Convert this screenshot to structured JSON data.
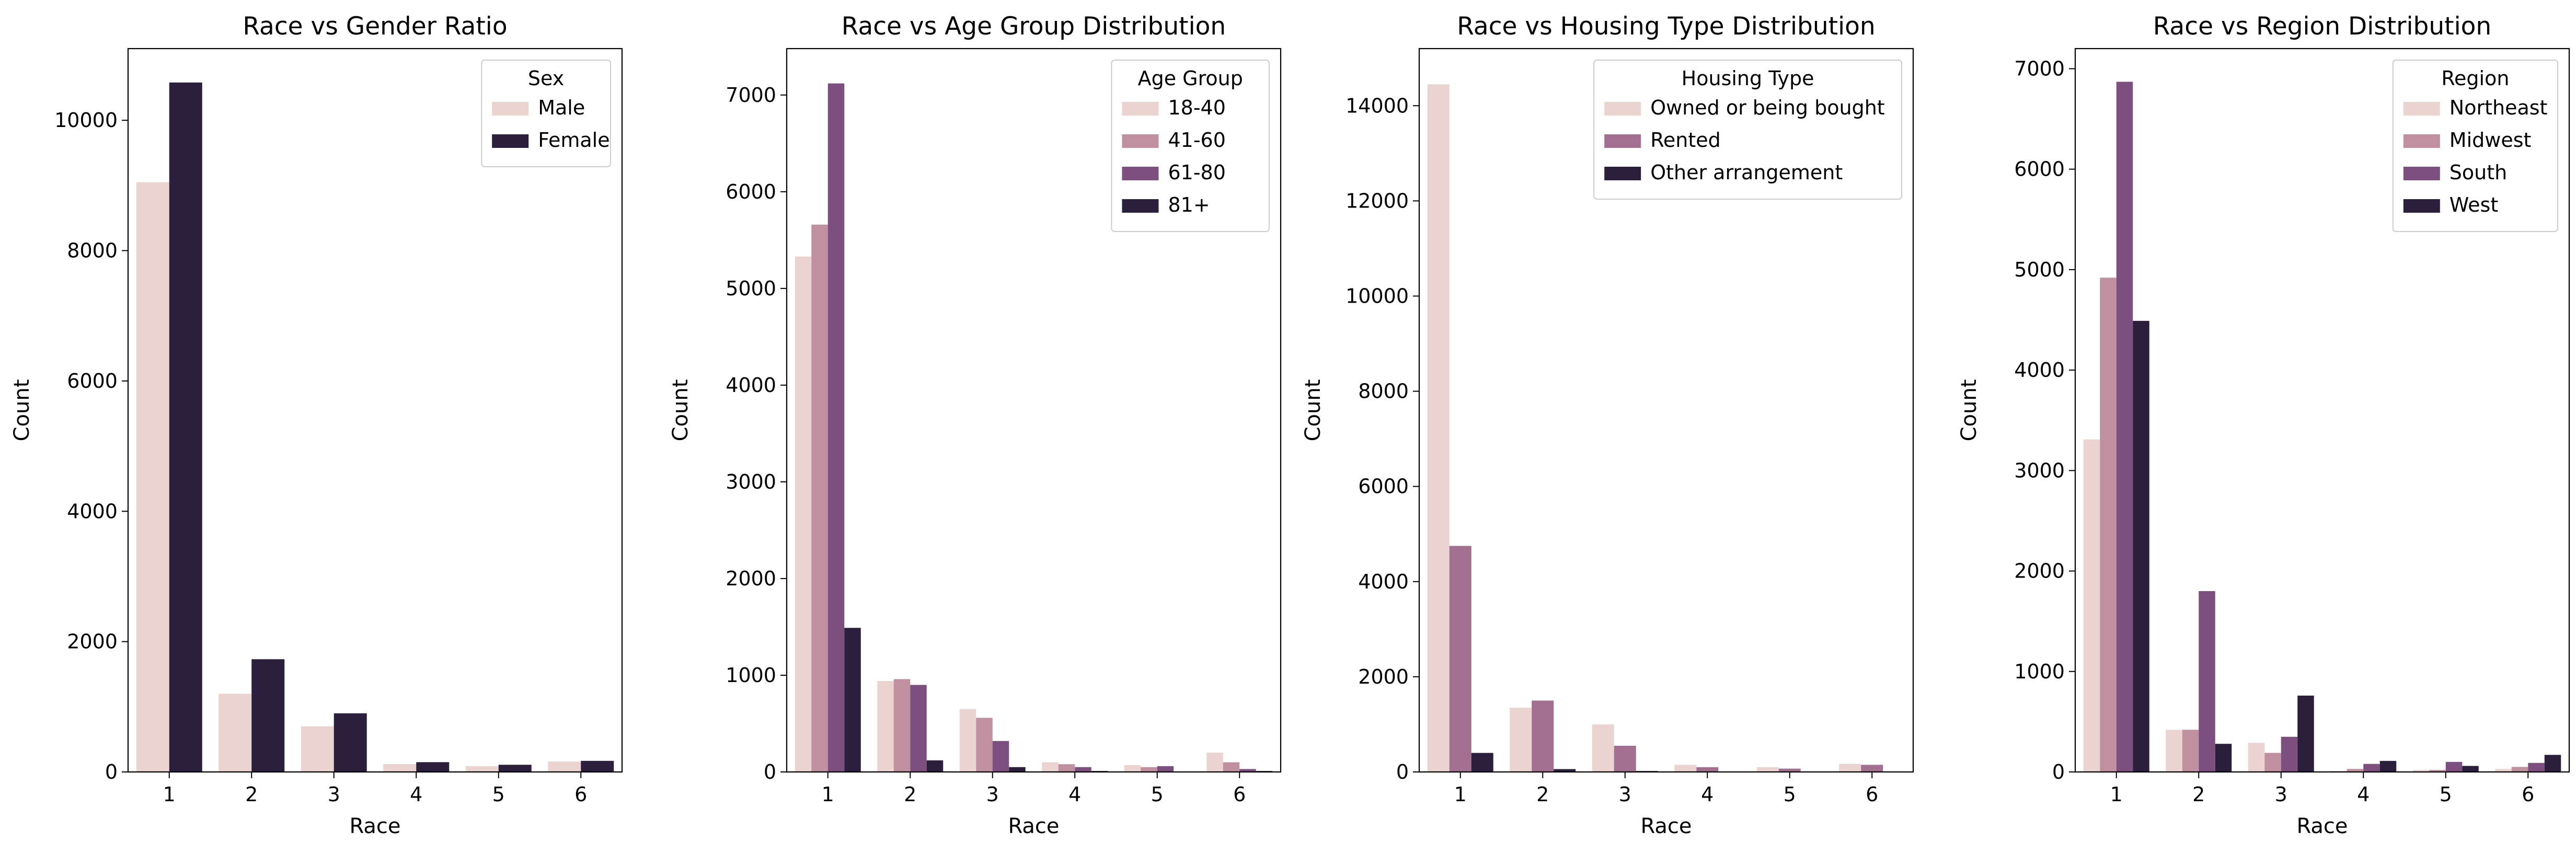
{
  "chart_data": [
    {
      "type": "bar",
      "title": "Race vs Gender Ratio",
      "xlabel": "Race",
      "ylabel": "Count",
      "categories": [
        "1",
        "2",
        "3",
        "4",
        "5",
        "6"
      ],
      "ylim": [
        0,
        11100
      ],
      "yticks": [
        "0",
        "2000",
        "4000",
        "6000",
        "8000",
        "10000"
      ],
      "legend": {
        "title": "Sex",
        "position": "top-right"
      },
      "series": [
        {
          "name": "Male",
          "color": "#ebd3cf",
          "values": [
            9050,
            1200,
            700,
            120,
            90,
            160
          ]
        },
        {
          "name": "Female",
          "color": "#2c1e3d",
          "values": [
            10580,
            1730,
            900,
            150,
            110,
            170
          ]
        }
      ]
    },
    {
      "type": "bar",
      "title": "Race vs Age Group Distribution",
      "xlabel": "Race",
      "ylabel": "Count",
      "categories": [
        "1",
        "2",
        "3",
        "4",
        "5",
        "6"
      ],
      "ylim": [
        0,
        7480
      ],
      "yticks": [
        "0",
        "1000",
        "2000",
        "3000",
        "4000",
        "5000",
        "6000",
        "7000"
      ],
      "legend": {
        "title": "Age Group",
        "position": "top-right"
      },
      "series": [
        {
          "name": "18-40",
          "color": "#ebd3cf",
          "values": [
            5330,
            940,
            650,
            100,
            70,
            200
          ]
        },
        {
          "name": "41-60",
          "color": "#c08fa0",
          "values": [
            5660,
            960,
            560,
            80,
            50,
            100
          ]
        },
        {
          "name": "61-80",
          "color": "#7d4f7f",
          "values": [
            7120,
            900,
            320,
            50,
            60,
            30
          ]
        },
        {
          "name": "81+",
          "color": "#2c1e3d",
          "values": [
            1490,
            120,
            50,
            10,
            5,
            10
          ]
        }
      ]
    },
    {
      "type": "bar",
      "title": "Race vs Housing Type Distribution",
      "xlabel": "Race",
      "ylabel": "Count",
      "categories": [
        "1",
        "2",
        "3",
        "4",
        "5",
        "6"
      ],
      "ylim": [
        0,
        15200
      ],
      "yticks": [
        "0",
        "2000",
        "4000",
        "6000",
        "8000",
        "10000",
        "12000",
        "14000"
      ],
      "legend": {
        "title": "Housing Type",
        "position": "top-right"
      },
      "series": [
        {
          "name": "Owned or being bought",
          "color": "#ebd3cf",
          "values": [
            14450,
            1350,
            1000,
            150,
            100,
            170
          ]
        },
        {
          "name": "Rented",
          "color": "#a36f91",
          "values": [
            4750,
            1500,
            550,
            100,
            70,
            150
          ]
        },
        {
          "name": "Other arrangement",
          "color": "#2c1e3d",
          "values": [
            400,
            60,
            20,
            5,
            5,
            5
          ]
        }
      ]
    },
    {
      "type": "bar",
      "title": "Race vs Region Distribution",
      "xlabel": "Race",
      "ylabel": "Count",
      "categories": [
        "1",
        "2",
        "3",
        "4",
        "5",
        "6"
      ],
      "ylim": [
        0,
        7200
      ],
      "yticks": [
        "0",
        "1000",
        "2000",
        "3000",
        "4000",
        "5000",
        "6000",
        "7000"
      ],
      "legend": {
        "title": "Region",
        "position": "top-right"
      },
      "series": [
        {
          "name": "Northeast",
          "color": "#ebd3cf",
          "values": [
            3310,
            420,
            290,
            10,
            20,
            30
          ]
        },
        {
          "name": "Midwest",
          "color": "#c08fa0",
          "values": [
            4920,
            420,
            190,
            30,
            20,
            50
          ]
        },
        {
          "name": "South",
          "color": "#7d4f7f",
          "values": [
            6870,
            1800,
            350,
            80,
            100,
            90
          ]
        },
        {
          "name": "West",
          "color": "#2c1e3d",
          "values": [
            4490,
            280,
            760,
            110,
            60,
            170
          ]
        }
      ]
    }
  ]
}
